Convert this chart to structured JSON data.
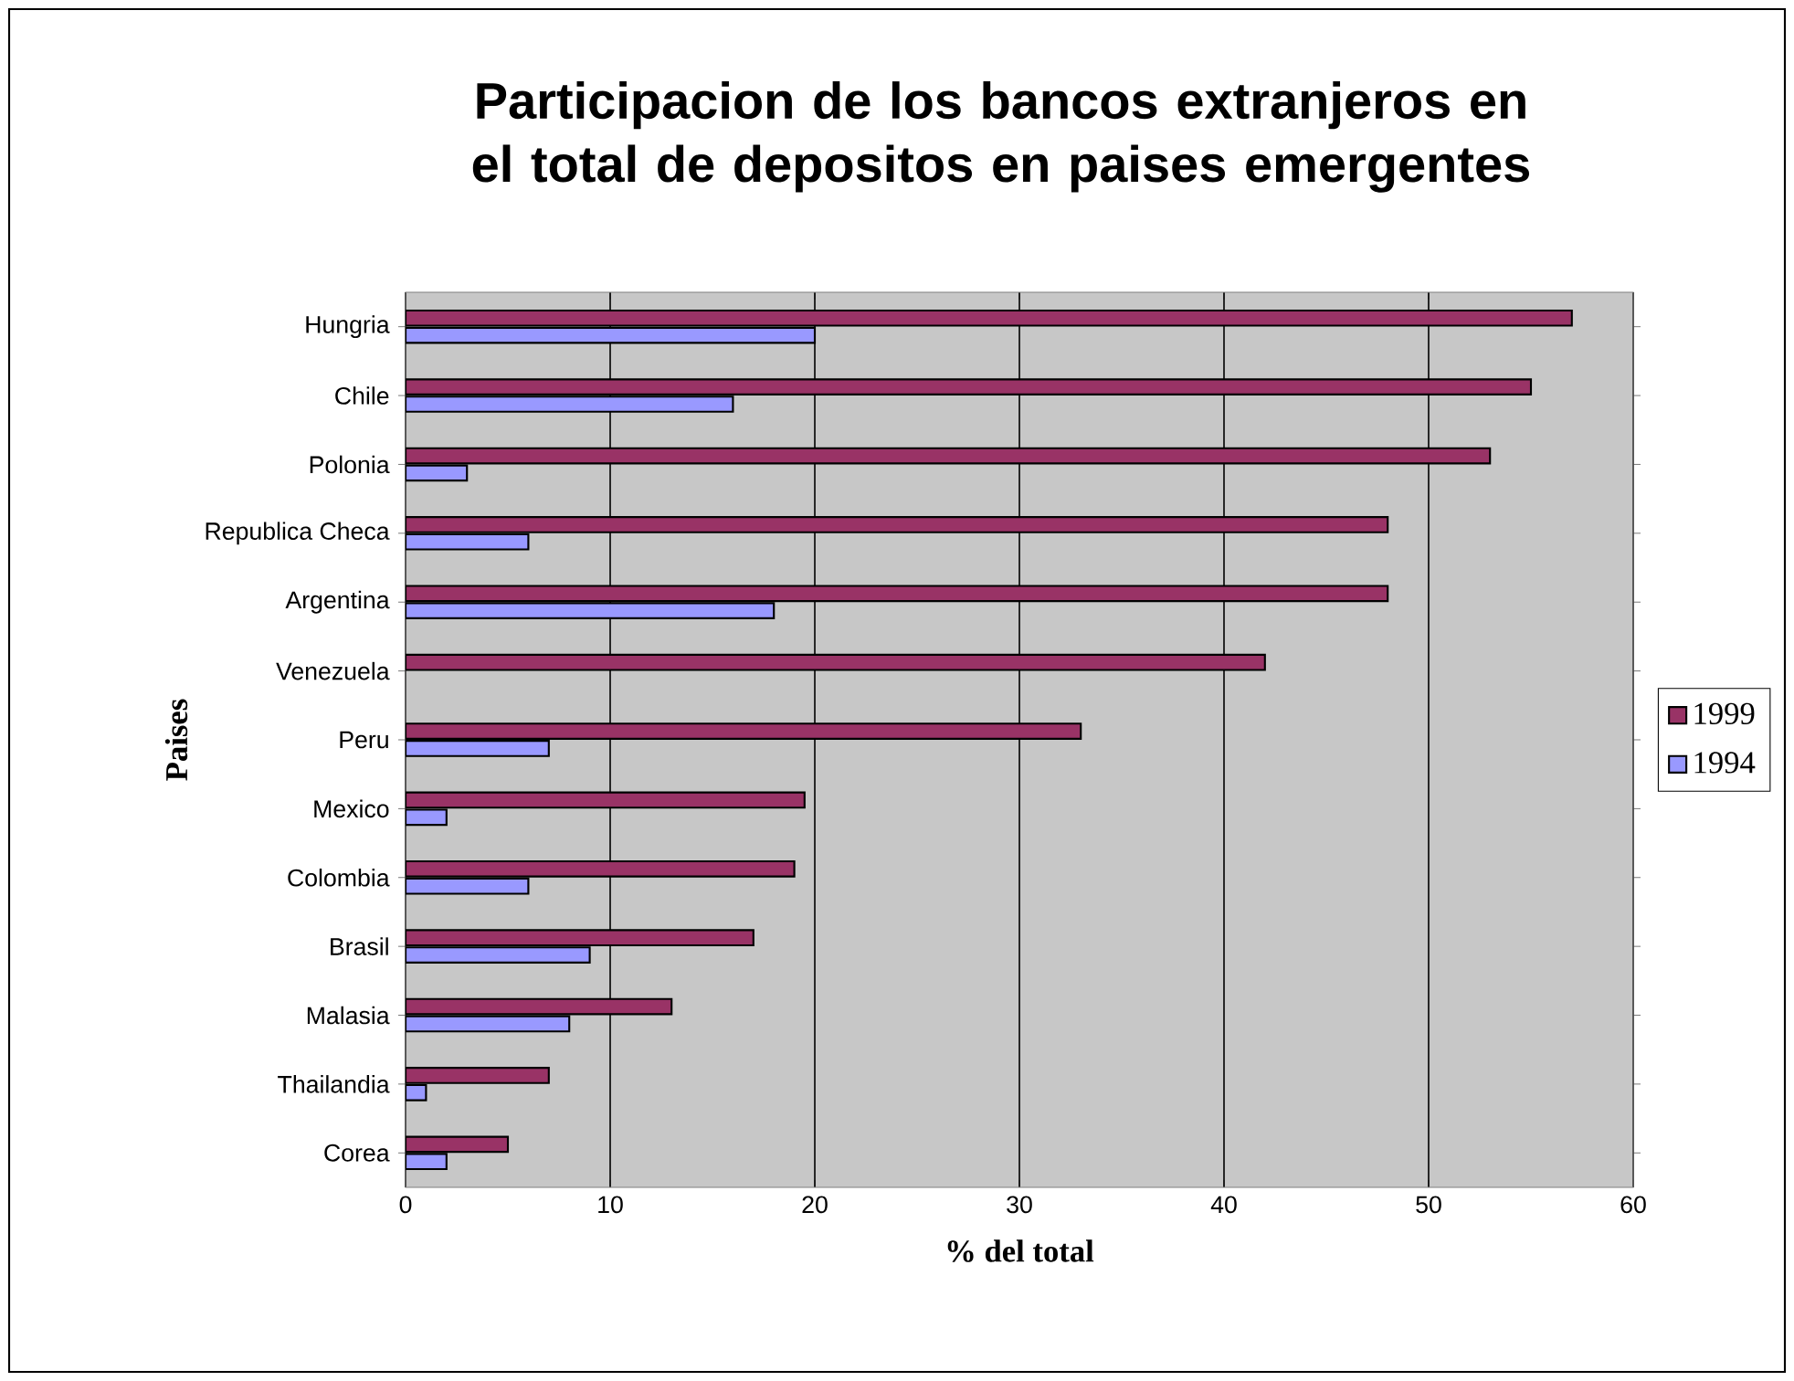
{
  "chart_data": {
    "type": "bar",
    "orientation": "horizontal",
    "title": "Participacion de los bancos extranjeros en el total de depositos en paises emergentes",
    "xlabel": "% del total",
    "ylabel": "Paises",
    "categories": [
      "Hungria",
      "Chile",
      "Polonia",
      "Republica Checa",
      "Argentina",
      "Venezuela",
      "Peru",
      "Mexico",
      "Colombia",
      "Brasil",
      "Malasia",
      "Thailandia",
      "Corea"
    ],
    "series": [
      {
        "name": "1999",
        "color": "#993366",
        "values": [
          57,
          55,
          53,
          48,
          48,
          42,
          33,
          19.5,
          19,
          17,
          13,
          7,
          5
        ]
      },
      {
        "name": "1994",
        "color": "#9999ff",
        "values": [
          20,
          16,
          3,
          6,
          18,
          null,
          7,
          2,
          6,
          9,
          8,
          1,
          2
        ]
      }
    ],
    "xlim": [
      0,
      60
    ],
    "xticks": [
      0,
      10,
      20,
      30,
      40,
      50,
      60
    ],
    "grid": "x",
    "legend": "right"
  }
}
